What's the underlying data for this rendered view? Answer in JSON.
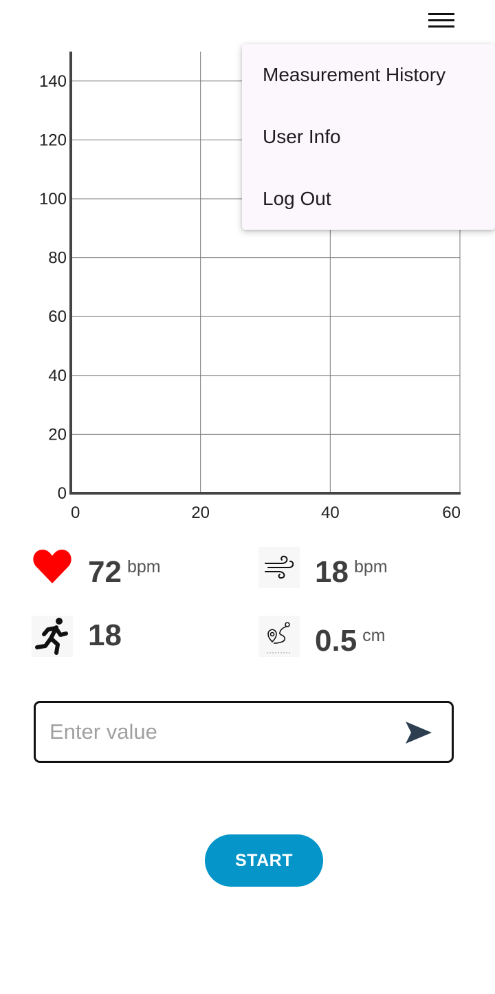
{
  "menu": {
    "items": [
      {
        "label": "Measurement History"
      },
      {
        "label": "User Info"
      },
      {
        "label": "Log Out"
      }
    ]
  },
  "chart_data": {
    "type": "line",
    "x_ticks": [
      "0",
      "20",
      "40",
      "60"
    ],
    "y_ticks": [
      "0",
      "20",
      "40",
      "60",
      "80",
      "100",
      "120",
      "140"
    ],
    "xlim": [
      0,
      60
    ],
    "ylim": [
      0,
      150
    ],
    "grid": true,
    "series": []
  },
  "vitals": {
    "heart_rate": {
      "value": "72",
      "unit": "bpm",
      "icon": "heart-icon",
      "color": "#ff0000"
    },
    "respiration": {
      "value": "18",
      "unit": "bpm",
      "icon": "wind-icon"
    },
    "steps": {
      "value": "18",
      "icon": "running-icon"
    },
    "distance": {
      "value": "0.5",
      "unit": "cm",
      "icon": "route-icon"
    }
  },
  "input": {
    "value": "",
    "placeholder": "Enter value"
  },
  "start_button": {
    "label": "START",
    "color": "#0595c8"
  }
}
